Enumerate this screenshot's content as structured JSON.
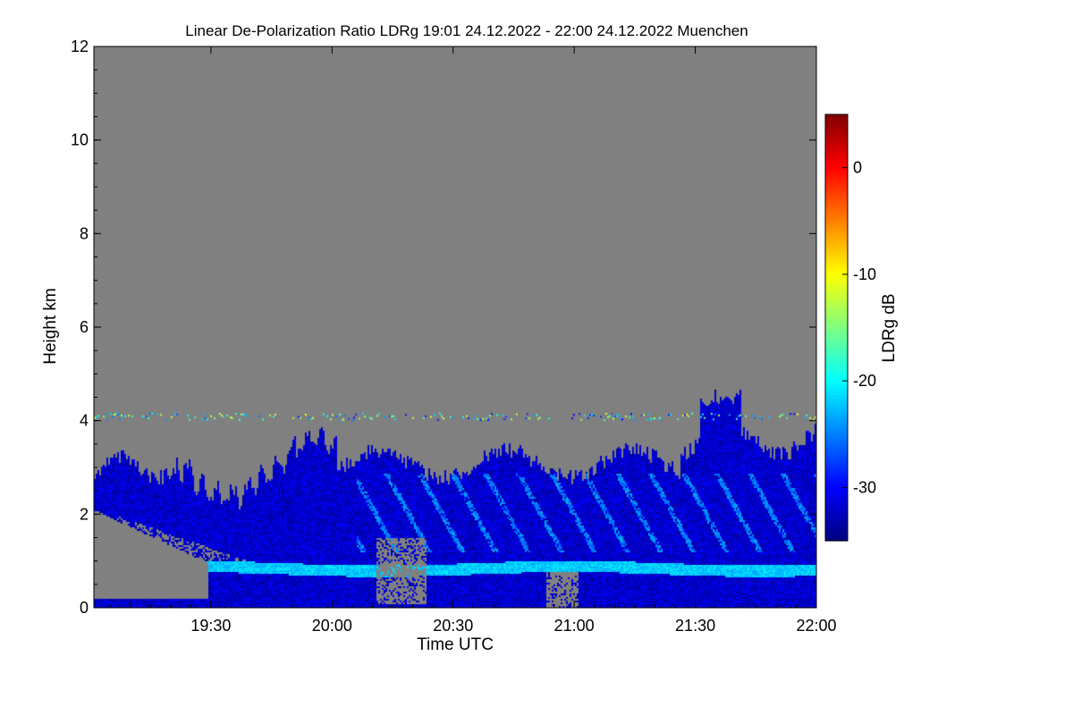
{
  "chart_data": {
    "type": "heatmap",
    "title": "Linear De-Polarization Ratio LDRg   19:01 24.12.2022 - 22:00 24.12.2022 Muenchen",
    "xlabel": "Time UTC",
    "ylabel": "Height km",
    "x_range": [
      "19:01",
      "22:00"
    ],
    "x_ticks": [
      "19:30",
      "20:00",
      "20:30",
      "21:00",
      "21:30",
      "22:00"
    ],
    "x_tick_minutes": [
      29,
      59,
      89,
      119,
      149,
      179
    ],
    "ylim": [
      0,
      12
    ],
    "y_ticks": [
      "0",
      "2",
      "4",
      "6",
      "8",
      "10",
      "12"
    ],
    "y_tick_values": [
      0,
      2,
      4,
      6,
      8,
      10,
      12
    ],
    "no_data_color": "#808080",
    "colorbar": {
      "label": "LDRg dB",
      "range": [
        -35,
        5
      ],
      "ticks": [
        "0",
        "-10",
        "-20",
        "-30"
      ],
      "tick_values": [
        0,
        -10,
        -20,
        -30
      ],
      "colormap": "jet"
    },
    "features": {
      "cloud_top_km": 4.1,
      "cloud_base_km": 0.0,
      "bright_band_height_km": 0.85,
      "bright_band_ldr_db": -22,
      "upper_streaks_height_km": 2.2,
      "upper_streaks_ldr_db": -25,
      "background_ldr_db": -32
    }
  }
}
